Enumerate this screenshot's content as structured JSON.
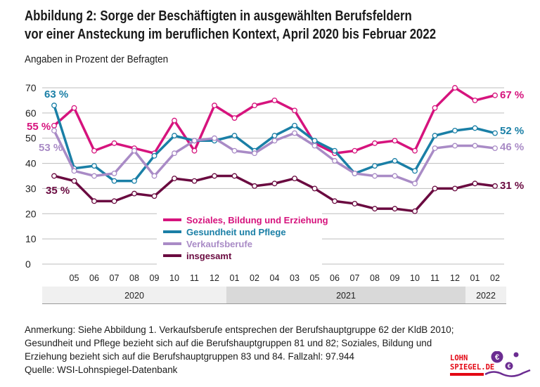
{
  "title_line1": "Abbildung 2: Sorge der Beschäftigten in ausgewählten Berufsfeldern",
  "title_line2": "vor einer Ansteckung im beruflichen Kontext, April 2020 bis Februar 2022",
  "subtitle": "Angaben in Prozent der Befragten",
  "chart_data": {
    "type": "line",
    "ylim": [
      0,
      70
    ],
    "yticks": [
      "0",
      "10",
      "20",
      "30",
      "40",
      "50",
      "60",
      "70"
    ],
    "grid": true,
    "legend_placement": "center",
    "x_tick_labels": [
      "",
      "05",
      "06",
      "07",
      "08",
      "09",
      "10",
      "11",
      "12",
      "01",
      "02",
      "04",
      "03",
      "05",
      "06",
      "07",
      "08",
      "09",
      "10",
      "11",
      "12",
      "01",
      "02"
    ],
    "year_bands": [
      {
        "label": "2020",
        "color": "#f0f0f0"
      },
      {
        "label": "2021",
        "color": "#d9d9d9"
      },
      {
        "label": "2022",
        "color": "#f0f0f0"
      }
    ],
    "series": [
      {
        "name": "Soziales, Bildung und Erziehung",
        "color": "#d6137d",
        "start_label": "55 %",
        "end_label": "67 %",
        "values": [
          55,
          62,
          45,
          48,
          46,
          44,
          57,
          45,
          63,
          58,
          63,
          65,
          61,
          48,
          44,
          45,
          48,
          49,
          45,
          62,
          70,
          65,
          67
        ]
      },
      {
        "name": "Gesundheit und Pflege",
        "color": "#1a7fa6",
        "start_label": "63 %",
        "end_label": "52 %",
        "values": [
          63,
          38,
          39,
          33,
          33,
          43,
          51,
          49,
          49,
          51,
          45,
          51,
          55,
          49,
          45,
          36,
          39,
          41,
          37,
          51,
          53,
          54,
          52
        ]
      },
      {
        "name": "Verkaufsberufe",
        "color": "#a98bc6",
        "start_label": "53 %",
        "end_label": "46 %",
        "values": [
          53,
          37,
          35,
          36,
          45,
          35,
          44,
          49,
          50,
          45,
          44,
          49,
          52,
          47,
          41,
          36,
          35,
          35,
          32,
          46,
          47,
          47,
          46
        ]
      },
      {
        "name": "insgesamt",
        "color": "#6a0a40",
        "start_label": "35 %",
        "end_label": "31 %",
        "values": [
          35,
          33,
          25,
          25,
          28,
          27,
          34,
          33,
          35,
          35,
          31,
          32,
          34,
          30,
          25,
          24,
          22,
          22,
          21,
          30,
          30,
          32,
          31
        ]
      }
    ]
  },
  "notes": [
    "Anmerkung: Siehe Abbildung 1. Verkaufsberufe entsprechen der Berufshauptgruppe 62 der KldB 2010;",
    "Gesundheit und Pflege bezieht sich auf die Berufshauptgruppen 81 und 82; Soziales, Bildung und",
    "Erziehung bezieht sich auf die Berufshauptgruppen 83 und 84. Fallzahl:  97.944",
    "Quelle: WSI-Lohnspiegel-Datenbank"
  ],
  "logo": {
    "line1": "LOHN",
    "line2": "SPIEGEL.DE",
    "color": "#e30613",
    "accent": "#6b2c91"
  }
}
